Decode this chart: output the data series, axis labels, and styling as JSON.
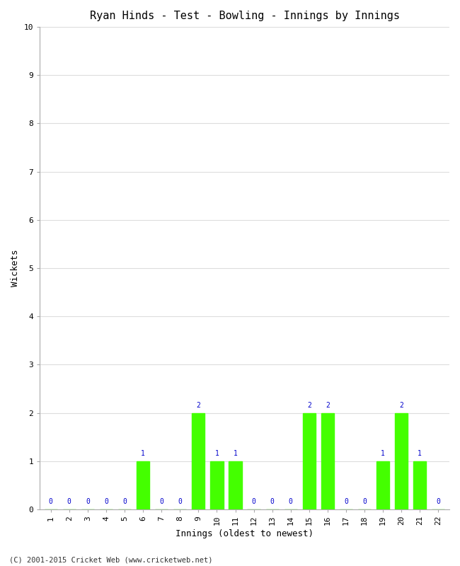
{
  "title": "Ryan Hinds - Test - Bowling - Innings by Innings",
  "xlabel": "Innings (oldest to newest)",
  "ylabel": "Wickets",
  "categories": [
    1,
    2,
    3,
    4,
    5,
    6,
    7,
    8,
    9,
    10,
    11,
    12,
    13,
    14,
    15,
    16,
    17,
    18,
    19,
    20,
    21,
    22
  ],
  "values": [
    0,
    0,
    0,
    0,
    0,
    1,
    0,
    0,
    2,
    1,
    1,
    0,
    0,
    0,
    2,
    2,
    0,
    0,
    1,
    2,
    1,
    0
  ],
  "bar_color": "#44ff00",
  "label_color": "#0000cc",
  "background_color": "#ffffff",
  "grid_color": "#dddddd",
  "ylim": [
    0,
    10
  ],
  "yticks": [
    0,
    1,
    2,
    3,
    4,
    5,
    6,
    7,
    8,
    9,
    10
  ],
  "footer": "(C) 2001-2015 Cricket Web (www.cricketweb.net)",
  "title_fontsize": 11,
  "axis_label_fontsize": 9,
  "tick_fontsize": 8,
  "label_fontsize": 7
}
